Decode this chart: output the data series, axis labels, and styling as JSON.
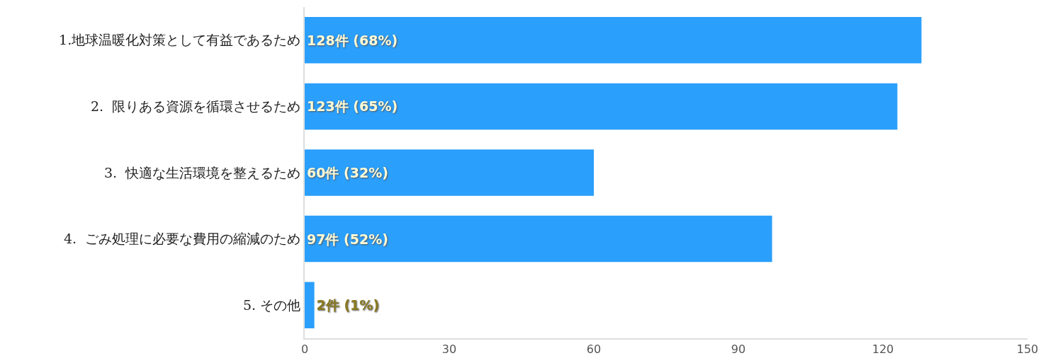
{
  "chart_data": {
    "type": "bar",
    "orientation": "horizontal",
    "categories": [
      "1.地球温暖化対策として有益であるため",
      "2.  限りある資源を循環させるため",
      "3.  快適な生活環境を整えるため",
      "4.  ごみ処理に必要な費用の縮減のため",
      "5. その他"
    ],
    "values": [
      128,
      123,
      60,
      97,
      2
    ],
    "value_labels": [
      "128件 (68%)",
      "123件 (65%)",
      "60件 (32%)",
      "97件 (52%)",
      "2件 (1%)"
    ],
    "color": "#2a9ffc",
    "xlim": [
      0,
      150
    ],
    "xticks": [
      0,
      30,
      60,
      90,
      120,
      150
    ],
    "grid": false
  }
}
